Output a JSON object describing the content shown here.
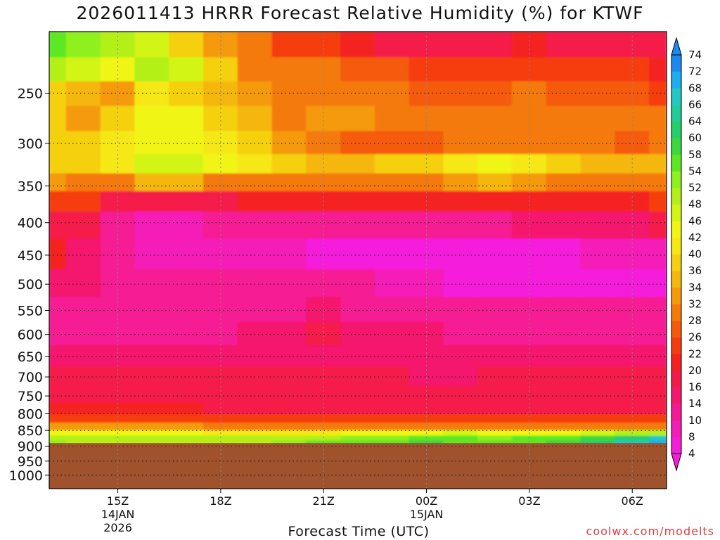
{
  "chart_data": {
    "type": "heatmap",
    "title": "2026011413 HRRR Forecast Relative Humidity (%) for KTWF",
    "xlabel": "Forecast Time (UTC)",
    "ylabel": "",
    "x_ticks": [
      {
        "label": "15Z",
        "sub": [
          "14JAN",
          "2026"
        ],
        "hour": 15
      },
      {
        "label": "18Z",
        "sub": [],
        "hour": 18
      },
      {
        "label": "21Z",
        "sub": [],
        "hour": 21
      },
      {
        "label": "00Z",
        "sub": [
          "15JAN"
        ],
        "hour": 24
      },
      {
        "label": "03Z",
        "sub": [],
        "hour": 27
      },
      {
        "label": "06Z",
        "sub": [],
        "hour": 30
      }
    ],
    "xlim": [
      13,
      31
    ],
    "y_ticks": [
      250,
      300,
      350,
      400,
      450,
      500,
      550,
      600,
      650,
      700,
      750,
      800,
      850,
      900,
      950,
      1000
    ],
    "ylim": [
      200,
      1050
    ],
    "y_scale": "log",
    "y_reversed": true,
    "grid": true,
    "below_ground_from": 890,
    "colorbar": {
      "levels": [
        4,
        8,
        10,
        14,
        16,
        20,
        22,
        26,
        28,
        32,
        34,
        36,
        40,
        42,
        46,
        48,
        52,
        54,
        58,
        60,
        64,
        66,
        68,
        72,
        74
      ],
      "colors": [
        "#f51cdb",
        "#f51cb7",
        "#f51a94",
        "#f5176d",
        "#f51a49",
        "#f52020",
        "#f53c0e",
        "#f55a0a",
        "#f57a08",
        "#f59908",
        "#f5b70b",
        "#f5d010",
        "#f5e812",
        "#f0f512",
        "#d2f514",
        "#b2f018",
        "#8ef01c",
        "#5ce820",
        "#3ad83e",
        "#22d06a",
        "#20cc98",
        "#22c8c4",
        "#1aaef0",
        "#1a8af0"
      ],
      "placement": "right"
    },
    "profile": [
      {
        "p": 210,
        "rh": [
          55,
          52,
          50,
          46,
          38,
          32,
          28,
          24,
          22,
          20,
          18,
          16,
          16,
          18,
          20,
          18,
          16,
          16,
          18
        ]
      },
      {
        "p": 230,
        "rh": [
          48,
          46,
          44,
          50,
          46,
          36,
          30,
          28,
          28,
          26,
          26,
          24,
          22,
          22,
          24,
          22,
          24,
          22,
          20
        ]
      },
      {
        "p": 250,
        "rh": [
          36,
          34,
          32,
          40,
          38,
          34,
          32,
          30,
          30,
          30,
          28,
          26,
          26,
          26,
          28,
          26,
          26,
          26,
          24
        ]
      },
      {
        "p": 275,
        "rh": [
          38,
          32,
          36,
          44,
          42,
          36,
          34,
          30,
          32,
          32,
          30,
          30,
          28,
          30,
          30,
          28,
          30,
          30,
          28
        ]
      },
      {
        "p": 300,
        "rh": [
          36,
          36,
          40,
          44,
          44,
          40,
          36,
          32,
          28,
          26,
          26,
          26,
          28,
          28,
          28,
          28,
          28,
          26,
          28
        ]
      },
      {
        "p": 325,
        "rh": [
          38,
          38,
          40,
          46,
          46,
          44,
          40,
          36,
          34,
          34,
          36,
          36,
          40,
          44,
          40,
          36,
          34,
          34,
          34
        ]
      },
      {
        "p": 345,
        "rh": [
          32,
          30,
          30,
          34,
          34,
          30,
          30,
          30,
          28,
          28,
          30,
          30,
          32,
          34,
          32,
          30,
          30,
          30,
          30
        ]
      },
      {
        "p": 370,
        "rh": [
          22,
          22,
          18,
          16,
          16,
          16,
          20,
          20,
          20,
          20,
          20,
          20,
          20,
          20,
          20,
          20,
          20,
          20,
          22
        ]
      },
      {
        "p": 400,
        "rh": [
          18,
          18,
          12,
          8,
          8,
          10,
          10,
          10,
          12,
          12,
          12,
          12,
          12,
          12,
          14,
          14,
          14,
          14,
          16
        ]
      },
      {
        "p": 450,
        "rh": [
          20,
          14,
          10,
          8,
          8,
          8,
          8,
          8,
          6,
          6,
          6,
          4,
          4,
          6,
          6,
          6,
          8,
          8,
          8
        ]
      },
      {
        "p": 500,
        "rh": [
          14,
          14,
          12,
          10,
          10,
          10,
          10,
          10,
          10,
          10,
          8,
          8,
          6,
          6,
          6,
          4,
          4,
          4,
          6
        ]
      },
      {
        "p": 550,
        "rh": [
          12,
          12,
          12,
          12,
          12,
          12,
          12,
          12,
          14,
          12,
          12,
          10,
          10,
          10,
          10,
          10,
          10,
          10,
          10
        ]
      },
      {
        "p": 600,
        "rh": [
          12,
          12,
          12,
          12,
          12,
          12,
          14,
          14,
          16,
          14,
          14,
          14,
          12,
          12,
          12,
          12,
          12,
          12,
          12
        ]
      },
      {
        "p": 650,
        "rh": [
          14,
          14,
          14,
          14,
          14,
          14,
          14,
          14,
          14,
          14,
          14,
          14,
          14,
          14,
          14,
          14,
          14,
          14,
          14
        ]
      },
      {
        "p": 700,
        "rh": [
          16,
          16,
          18,
          18,
          16,
          16,
          16,
          16,
          16,
          16,
          16,
          14,
          14,
          16,
          16,
          16,
          16,
          16,
          16
        ]
      },
      {
        "p": 750,
        "rh": [
          18,
          18,
          18,
          18,
          18,
          16,
          16,
          16,
          16,
          16,
          16,
          16,
          16,
          16,
          16,
          16,
          16,
          16,
          16
        ]
      },
      {
        "p": 790,
        "rh": [
          20,
          20,
          20,
          20,
          20,
          18,
          18,
          18,
          18,
          18,
          18,
          18,
          18,
          18,
          18,
          18,
          18,
          18,
          18
        ]
      },
      {
        "p": 815,
        "rh": [
          24,
          24,
          24,
          24,
          24,
          22,
          22,
          22,
          22,
          22,
          22,
          22,
          22,
          22,
          22,
          22,
          22,
          22,
          22
        ]
      },
      {
        "p": 840,
        "rh": [
          32,
          32,
          32,
          32,
          32,
          30,
          30,
          30,
          30,
          30,
          30,
          30,
          30,
          30,
          30,
          30,
          30,
          30,
          30
        ]
      },
      {
        "p": 860,
        "rh": [
          44,
          42,
          42,
          42,
          42,
          40,
          40,
          40,
          40,
          42,
          42,
          44,
          46,
          44,
          44,
          44,
          46,
          48,
          50
        ]
      },
      {
        "p": 875,
        "rh": [
          50,
          48,
          48,
          48,
          48,
          48,
          48,
          48,
          50,
          52,
          52,
          56,
          54,
          52,
          54,
          56,
          58,
          62,
          66
        ]
      },
      {
        "p": 890,
        "rh": [
          52,
          50,
          50,
          50,
          50,
          50,
          50,
          52,
          54,
          56,
          56,
          58,
          56,
          54,
          56,
          58,
          62,
          66,
          70
        ]
      }
    ]
  },
  "watermark": "coolwx.com/modelts"
}
